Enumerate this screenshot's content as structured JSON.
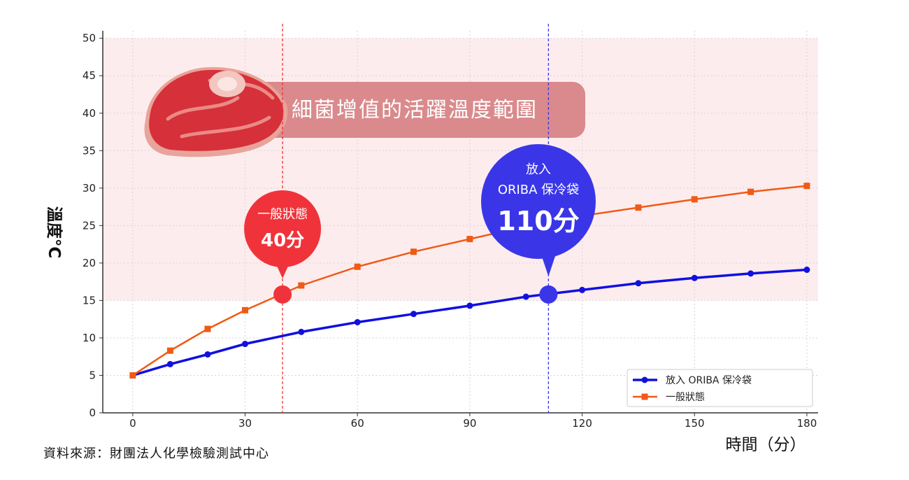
{
  "chart_data": {
    "type": "line",
    "xlabel": "時間（分）",
    "ylabel": "溫度°C",
    "xlim": [
      -8,
      183
    ],
    "ylim": [
      0,
      51
    ],
    "xticks": [
      0,
      30,
      60,
      90,
      120,
      150,
      180
    ],
    "yticks": [
      0,
      5,
      10,
      15,
      20,
      25,
      30,
      35,
      40,
      45,
      50
    ],
    "grid": true,
    "legend": "bottom-right",
    "danger_zone": {
      "label": "細菌增值的活躍溫度範圍",
      "y_from": 15,
      "y_to": 50
    },
    "series": [
      {
        "name": "放入 ORIBA 保冷袋",
        "color": "#1010e0",
        "marker": "circle",
        "x": [
          0,
          10,
          20,
          30,
          45,
          60,
          75,
          90,
          105,
          120,
          135,
          150,
          165,
          180
        ],
        "y": [
          5,
          6.5,
          7.8,
          9.2,
          10.8,
          12.1,
          13.2,
          14.3,
          15.5,
          16.4,
          17.3,
          18.0,
          18.6,
          19.1
        ]
      },
      {
        "name": "一般狀態",
        "color": "#f05a14",
        "marker": "square",
        "x": [
          0,
          10,
          20,
          30,
          45,
          60,
          75,
          90,
          105,
          120,
          135,
          150,
          165,
          180
        ],
        "y": [
          5,
          8.3,
          11.2,
          13.7,
          17.0,
          19.5,
          21.5,
          23.2,
          24.9,
          26.3,
          27.4,
          28.5,
          29.5,
          30.3
        ]
      }
    ],
    "annotations": [
      {
        "line1": "一般狀態",
        "line2": "40分",
        "x": 40,
        "y": 15.8,
        "color": "#f0333a"
      },
      {
        "line1": "放入",
        "line1b": "ORIBA 保冷袋",
        "line2": "110分",
        "x": 111,
        "y": 15.8,
        "color": "#3a36e8"
      }
    ]
  },
  "source": "資料來源：財團法人化學檢驗測試中心"
}
